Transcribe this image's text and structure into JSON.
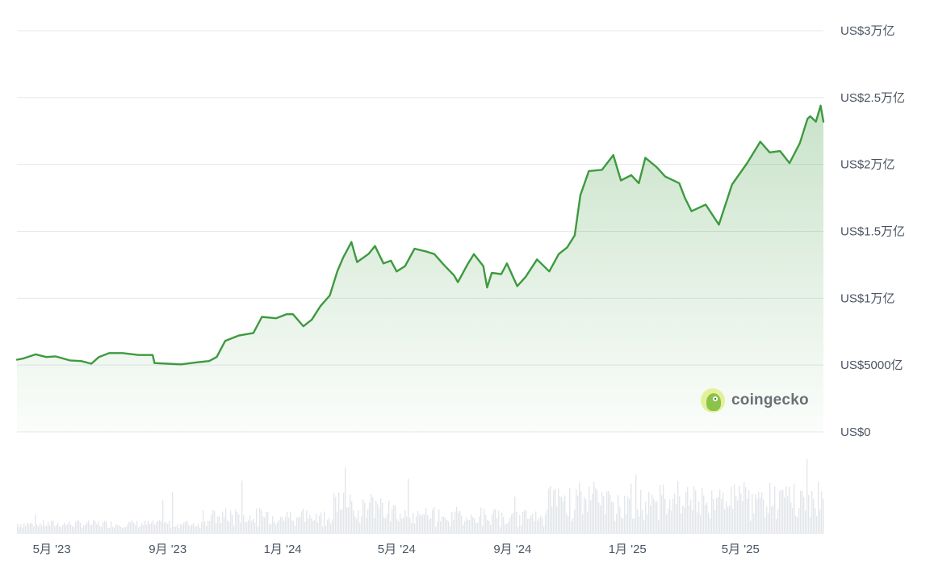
{
  "chart_data": {
    "type": "area",
    "title": "",
    "xlabel": "",
    "ylabel": "",
    "x_start": "2023-03-25",
    "x_end": "2025-07-28",
    "x_ticks": [
      {
        "date": "2023-05-01",
        "label": "5月 '23"
      },
      {
        "date": "2023-09-01",
        "label": "9月 '23"
      },
      {
        "date": "2024-01-01",
        "label": "1月 '24"
      },
      {
        "date": "2024-05-01",
        "label": "5月 '24"
      },
      {
        "date": "2024-09-01",
        "label": "9月 '24"
      },
      {
        "date": "2025-01-01",
        "label": "1月 '25"
      },
      {
        "date": "2025-05-01",
        "label": "5月 '25"
      }
    ],
    "y_ticks": [
      {
        "value": 0,
        "label": "US$0"
      },
      {
        "value": 500,
        "label": "US$5000亿"
      },
      {
        "value": 1000,
        "label": "US$1万亿"
      },
      {
        "value": 1500,
        "label": "US$1.5万亿"
      },
      {
        "value": 2000,
        "label": "US$2万亿"
      },
      {
        "value": 2500,
        "label": "US$2.5万亿"
      },
      {
        "value": 3000,
        "label": "US$3万亿"
      }
    ],
    "ylim": [
      0,
      3000
    ],
    "y_unit": "US$ 亿 (hundred million)",
    "grid": true,
    "colors": {
      "line": "#3d9a3f",
      "fill": "#3d9a3f",
      "grid": "#e5e7eb",
      "volume": "#e3e6ea"
    },
    "series": [
      {
        "values": [
          [
            "2023-03-25",
            540
          ],
          [
            "2023-04-01",
            550
          ],
          [
            "2023-04-14",
            580
          ],
          [
            "2023-04-25",
            560
          ],
          [
            "2023-05-05",
            565
          ],
          [
            "2023-05-20",
            535
          ],
          [
            "2023-06-01",
            530
          ],
          [
            "2023-06-12",
            510
          ],
          [
            "2023-06-20",
            560
          ],
          [
            "2023-07-01",
            590
          ],
          [
            "2023-07-15",
            590
          ],
          [
            "2023-08-01",
            575
          ],
          [
            "2023-08-16",
            575
          ],
          [
            "2023-08-18",
            515
          ],
          [
            "2023-09-01",
            510
          ],
          [
            "2023-09-15",
            505
          ],
          [
            "2023-10-01",
            520
          ],
          [
            "2023-10-15",
            530
          ],
          [
            "2023-10-23",
            560
          ],
          [
            "2023-11-01",
            680
          ],
          [
            "2023-11-15",
            720
          ],
          [
            "2023-12-01",
            740
          ],
          [
            "2023-12-10",
            860
          ],
          [
            "2023-12-25",
            850
          ],
          [
            "2024-01-05",
            880
          ],
          [
            "2024-01-12",
            880
          ],
          [
            "2024-01-23",
            790
          ],
          [
            "2024-02-01",
            840
          ],
          [
            "2024-02-10",
            940
          ],
          [
            "2024-02-20",
            1020
          ],
          [
            "2024-02-28",
            1200
          ],
          [
            "2024-03-05",
            1300
          ],
          [
            "2024-03-14",
            1420
          ],
          [
            "2024-03-20",
            1270
          ],
          [
            "2024-04-01",
            1330
          ],
          [
            "2024-04-08",
            1390
          ],
          [
            "2024-04-17",
            1260
          ],
          [
            "2024-04-25",
            1280
          ],
          [
            "2024-05-01",
            1200
          ],
          [
            "2024-05-10",
            1240
          ],
          [
            "2024-05-20",
            1370
          ],
          [
            "2024-06-01",
            1350
          ],
          [
            "2024-06-10",
            1330
          ],
          [
            "2024-06-20",
            1250
          ],
          [
            "2024-07-01",
            1170
          ],
          [
            "2024-07-05",
            1120
          ],
          [
            "2024-07-15",
            1250
          ],
          [
            "2024-07-22",
            1330
          ],
          [
            "2024-08-01",
            1240
          ],
          [
            "2024-08-05",
            1080
          ],
          [
            "2024-08-10",
            1190
          ],
          [
            "2024-08-20",
            1180
          ],
          [
            "2024-08-26",
            1260
          ],
          [
            "2024-09-06",
            1090
          ],
          [
            "2024-09-15",
            1160
          ],
          [
            "2024-09-27",
            1290
          ],
          [
            "2024-10-10",
            1200
          ],
          [
            "2024-10-20",
            1330
          ],
          [
            "2024-10-29",
            1380
          ],
          [
            "2024-11-06",
            1470
          ],
          [
            "2024-11-12",
            1770
          ],
          [
            "2024-11-21",
            1950
          ],
          [
            "2024-12-05",
            1960
          ],
          [
            "2024-12-17",
            2070
          ],
          [
            "2024-12-25",
            1880
          ],
          [
            "2025-01-05",
            1920
          ],
          [
            "2025-01-13",
            1860
          ],
          [
            "2025-01-20",
            2050
          ],
          [
            "2025-02-01",
            1980
          ],
          [
            "2025-02-10",
            1910
          ],
          [
            "2025-02-25",
            1860
          ],
          [
            "2025-03-03",
            1750
          ],
          [
            "2025-03-10",
            1650
          ],
          [
            "2025-03-25",
            1700
          ],
          [
            "2025-04-08",
            1550
          ],
          [
            "2025-04-22",
            1850
          ],
          [
            "2025-05-08",
            2010
          ],
          [
            "2025-05-22",
            2170
          ],
          [
            "2025-06-01",
            2090
          ],
          [
            "2025-06-12",
            2100
          ],
          [
            "2025-06-22",
            2010
          ],
          [
            "2025-07-03",
            2160
          ],
          [
            "2025-07-11",
            2340
          ],
          [
            "2025-07-14",
            2360
          ],
          [
            "2025-07-20",
            2320
          ],
          [
            "2025-07-25",
            2440
          ],
          [
            "2025-07-28",
            2320
          ]
        ]
      }
    ],
    "watermark": "coingecko"
  }
}
